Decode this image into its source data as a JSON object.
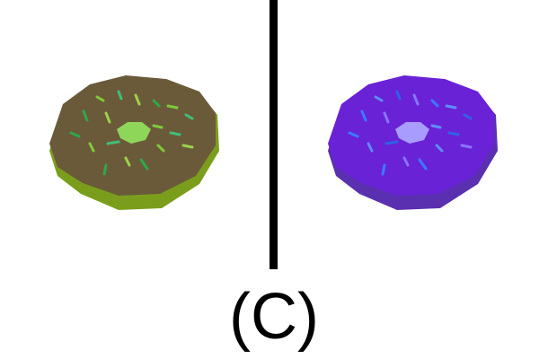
{
  "caption": "(C)",
  "divider_color": "#000000",
  "panels": [
    {
      "subject": "donut",
      "base_color": "#7a9e1c",
      "frosting_color": "#6b5a3a",
      "hole_color": "#8ed65a",
      "sprinkle_colors": [
        "#2fa84a",
        "#7ecb3a",
        "#3fbf7a",
        "#9bd24c"
      ]
    },
    {
      "subject": "donut",
      "base_color": "#5a2fb0",
      "frosting_color": "#6a22d6",
      "hole_color": "#a99cff",
      "sprinkle_colors": [
        "#3a7bff",
        "#5e8dff",
        "#2f62e6",
        "#8877ff"
      ]
    }
  ]
}
